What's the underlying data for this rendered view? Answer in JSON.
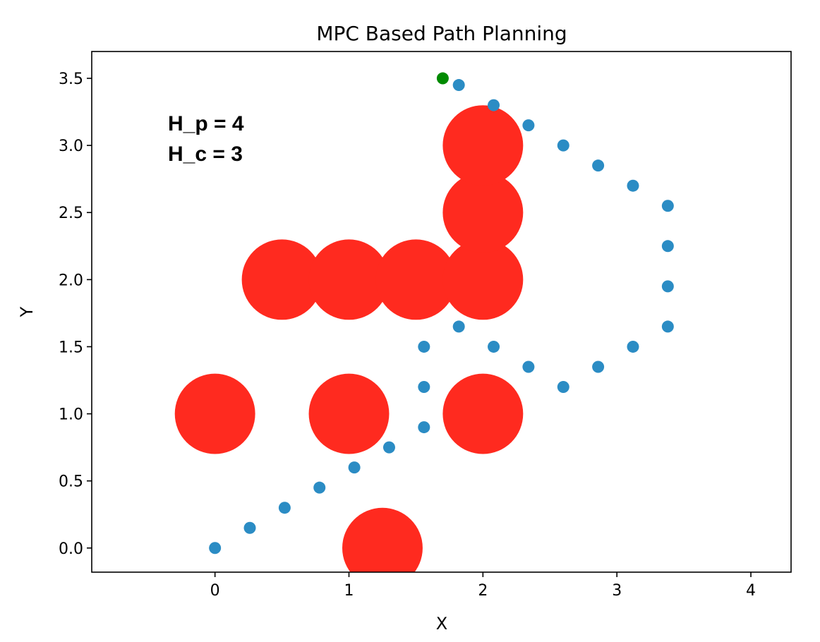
{
  "chart_data": {
    "type": "scatter",
    "title": "MPC Based Path Planning",
    "xlabel": "X",
    "ylabel": "Y",
    "xlim": [
      -0.92,
      4.3
    ],
    "ylim": [
      -0.18,
      3.7
    ],
    "xticks": [
      0,
      1,
      2,
      3,
      4
    ],
    "xtick_labels": [
      "0",
      "1",
      "2",
      "3",
      "4"
    ],
    "yticks": [
      0.0,
      0.5,
      1.0,
      1.5,
      2.0,
      2.5,
      3.0,
      3.5
    ],
    "ytick_labels": [
      "0.0",
      "0.5",
      "1.0",
      "1.5",
      "2.0",
      "2.5",
      "3.0",
      "3.5"
    ],
    "grid": false,
    "annotations": [
      "H_p = 4",
      "H_c = 3"
    ],
    "obstacles": {
      "color": "#ff2a1f",
      "radius": 0.3,
      "points": [
        {
          "x": 0.5,
          "y": 2.0
        },
        {
          "x": 1.0,
          "y": 2.0
        },
        {
          "x": 1.5,
          "y": 2.0
        },
        {
          "x": 2.0,
          "y": 2.0
        },
        {
          "x": 2.0,
          "y": 2.5
        },
        {
          "x": 2.0,
          "y": 3.0
        },
        {
          "x": 0.0,
          "y": 1.0
        },
        {
          "x": 1.0,
          "y": 1.0
        },
        {
          "x": 2.0,
          "y": 1.0
        },
        {
          "x": 1.25,
          "y": 0.0
        }
      ]
    },
    "path": {
      "color": "#2b8cc4",
      "points": [
        {
          "x": 0.0,
          "y": 0.0
        },
        {
          "x": 0.26,
          "y": 0.15
        },
        {
          "x": 0.52,
          "y": 0.3
        },
        {
          "x": 0.78,
          "y": 0.45
        },
        {
          "x": 1.04,
          "y": 0.6
        },
        {
          "x": 1.3,
          "y": 0.75
        },
        {
          "x": 1.56,
          "y": 0.9
        },
        {
          "x": 1.56,
          "y": 1.2
        },
        {
          "x": 1.56,
          "y": 1.5
        },
        {
          "x": 1.82,
          "y": 1.65
        },
        {
          "x": 2.08,
          "y": 1.5
        },
        {
          "x": 2.34,
          "y": 1.35
        },
        {
          "x": 2.6,
          "y": 1.2
        },
        {
          "x": 2.86,
          "y": 1.35
        },
        {
          "x": 3.12,
          "y": 1.5
        },
        {
          "x": 3.38,
          "y": 1.65
        },
        {
          "x": 3.38,
          "y": 1.95
        },
        {
          "x": 3.38,
          "y": 2.25
        },
        {
          "x": 3.38,
          "y": 2.55
        },
        {
          "x": 3.12,
          "y": 2.7
        },
        {
          "x": 2.86,
          "y": 2.85
        },
        {
          "x": 2.6,
          "y": 3.0
        },
        {
          "x": 2.34,
          "y": 3.15
        },
        {
          "x": 2.08,
          "y": 3.3
        },
        {
          "x": 1.82,
          "y": 3.45
        }
      ]
    },
    "goal": {
      "color": "#008a00",
      "x": 1.7,
      "y": 3.5
    }
  }
}
